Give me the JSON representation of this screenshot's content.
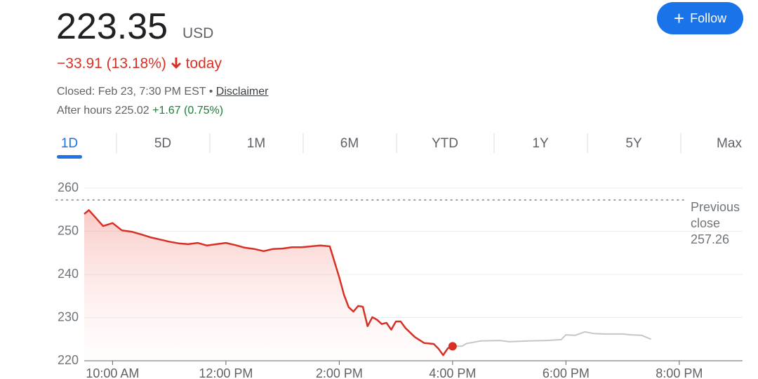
{
  "quote": {
    "price": "223.35",
    "currency": "USD",
    "change": "−33.91",
    "change_percent": "(13.18%)",
    "period": "today",
    "closed": "Closed: Feb 23, 7:30 PM EST",
    "bullet": "•",
    "disclaimer": "Disclaimer",
    "after_hours": "After hours 225.02",
    "after_hours_change": "+1.67 (0.75%)"
  },
  "follow_button": "Follow",
  "tabs": [
    "1D",
    "5D",
    "1M",
    "6M",
    "YTD",
    "1Y",
    "5Y",
    "Max"
  ],
  "active_tab": 0,
  "chart_data": {
    "type": "line",
    "x": [
      570,
      575,
      590,
      600,
      610,
      620,
      630,
      640,
      650,
      660,
      670,
      680,
      690,
      700,
      710,
      720,
      730,
      740,
      750,
      760,
      770,
      780,
      790,
      800,
      810,
      820,
      830,
      840,
      845,
      850,
      855,
      860,
      865,
      870,
      875,
      880,
      885,
      890,
      895,
      900,
      905,
      910,
      920,
      930,
      940,
      945,
      950,
      955,
      960,
      970,
      975,
      990,
      1010,
      1020,
      1040,
      1060,
      1075,
      1080,
      1090,
      1100,
      1110,
      1120,
      1130,
      1140,
      1150,
      1160,
      1170
    ],
    "series": [
      {
        "color": "#d93025",
        "values": [
          254.0,
          254.9,
          251.2,
          251.9,
          250.2,
          249.9,
          249.3,
          248.6,
          248.1,
          247.6,
          247.2,
          247.0,
          247.3,
          246.7,
          247.0,
          247.3,
          246.8,
          246.2,
          245.9,
          245.4,
          245.9,
          246.0,
          246.3,
          246.3,
          246.5,
          246.7,
          246.5,
          239.3,
          235.3,
          232.4,
          231.4,
          232.7,
          232.5,
          228.0,
          230.1,
          229.5,
          228.5,
          228.8,
          227.2,
          229.1,
          229.1,
          227.6,
          225.5,
          224.1,
          223.9,
          222.8,
          221.3,
          222.9,
          223.35,
          null,
          null,
          null,
          null,
          null,
          null,
          null,
          null,
          null,
          null,
          null,
          null,
          null,
          null,
          null,
          null,
          null,
          null
        ]
      },
      {
        "color": "#c4c7c9",
        "values": [
          null,
          null,
          null,
          null,
          null,
          null,
          null,
          null,
          null,
          null,
          null,
          null,
          null,
          null,
          null,
          null,
          null,
          null,
          null,
          null,
          null,
          null,
          null,
          null,
          null,
          null,
          null,
          null,
          null,
          null,
          null,
          null,
          null,
          null,
          null,
          null,
          null,
          null,
          null,
          null,
          null,
          null,
          null,
          null,
          null,
          null,
          null,
          null,
          223.35,
          223.4,
          224.0,
          224.6,
          224.7,
          224.4,
          224.6,
          224.7,
          224.9,
          226.0,
          225.9,
          226.7,
          226.3,
          226.2,
          226.2,
          226.2,
          226.0,
          225.9,
          225.0
        ]
      }
    ],
    "xlim": [
      570,
      1267
    ],
    "xticks": [
      {
        "value": 600,
        "label": "10:00 AM"
      },
      {
        "value": 720,
        "label": "12:00 PM"
      },
      {
        "value": 840,
        "label": "2:00 PM"
      },
      {
        "value": 960,
        "label": "4:00 PM"
      },
      {
        "value": 1080,
        "label": "6:00 PM"
      },
      {
        "value": 1200,
        "label": "8:00 PM"
      }
    ],
    "ylim": [
      220,
      262
    ],
    "yticks": [
      220,
      230,
      240,
      250,
      260
    ],
    "grid": true,
    "reference_line": {
      "label": "Previous close",
      "value": 257.26
    }
  }
}
